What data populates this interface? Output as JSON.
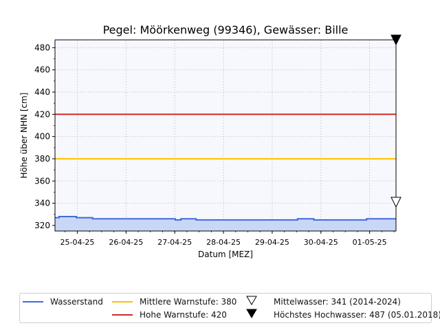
{
  "chart_data": {
    "type": "line",
    "title": "Pegel:  Möörkenweg (99346), Gewässer:  Bille",
    "xlabel": "Datum [MEZ]",
    "ylabel": "Höhe über NHN [cm]",
    "x_range": [
      "2025-04-24T13:00",
      "2025-05-01T13:00"
    ],
    "ylim": [
      315,
      487
    ],
    "yticks": [
      320,
      340,
      360,
      380,
      400,
      420,
      440,
      460,
      480
    ],
    "xticks": [
      {
        "date": "2025-04-25T00:00",
        "label": "25-04-25"
      },
      {
        "date": "2025-04-26T00:00",
        "label": "26-04-25"
      },
      {
        "date": "2025-04-27T00:00",
        "label": "27-04-25"
      },
      {
        "date": "2025-04-28T00:00",
        "label": "28-04-25"
      },
      {
        "date": "2025-04-29T00:00",
        "label": "29-04-25"
      },
      {
        "date": "2025-04-30T00:00",
        "label": "30-04-25"
      },
      {
        "date": "2025-05-01T00:00",
        "label": "01-05-25"
      }
    ],
    "grid": true,
    "legend_position": "bottom",
    "series": [
      {
        "name": "Wasserstand",
        "color": "#4169d8",
        "fill": "#c9d7f7",
        "points": [
          [
            "2025-04-24T13:00",
            327
          ],
          [
            "2025-04-24T15:00",
            328
          ],
          [
            "2025-04-24T23:00",
            328
          ],
          [
            "2025-04-24T23:30",
            327
          ],
          [
            "2025-04-25T07:00",
            327
          ],
          [
            "2025-04-25T07:30",
            326
          ],
          [
            "2025-04-27T00:00",
            326
          ],
          [
            "2025-04-27T00:15",
            325
          ],
          [
            "2025-04-27T02:30",
            325
          ],
          [
            "2025-04-27T03:00",
            326
          ],
          [
            "2025-04-27T10:00",
            326
          ],
          [
            "2025-04-27T10:30",
            325
          ],
          [
            "2025-04-29T12:00",
            325
          ],
          [
            "2025-04-29T12:30",
            326
          ],
          [
            "2025-04-29T20:00",
            326
          ],
          [
            "2025-04-29T20:30",
            325
          ],
          [
            "2025-04-30T22:00",
            325
          ],
          [
            "2025-04-30T22:30",
            326
          ],
          [
            "2025-05-01T13:00",
            326
          ]
        ]
      }
    ],
    "reference_lines": [
      {
        "name": "Mittlere Warnstufe: 380",
        "value": 380,
        "color": "#ffc000"
      },
      {
        "name": "Hohe Warnstufe: 420",
        "value": 420,
        "color": "#d62728"
      }
    ],
    "markers": [
      {
        "name": "Mittelwasser: 341 (2014-2024)",
        "value": 341,
        "symbol": "triangle-down-open"
      },
      {
        "name": "Höchstes Hochwasser: 487 (05.01.2018)",
        "value": 487,
        "symbol": "triangle-down-filled"
      }
    ]
  }
}
